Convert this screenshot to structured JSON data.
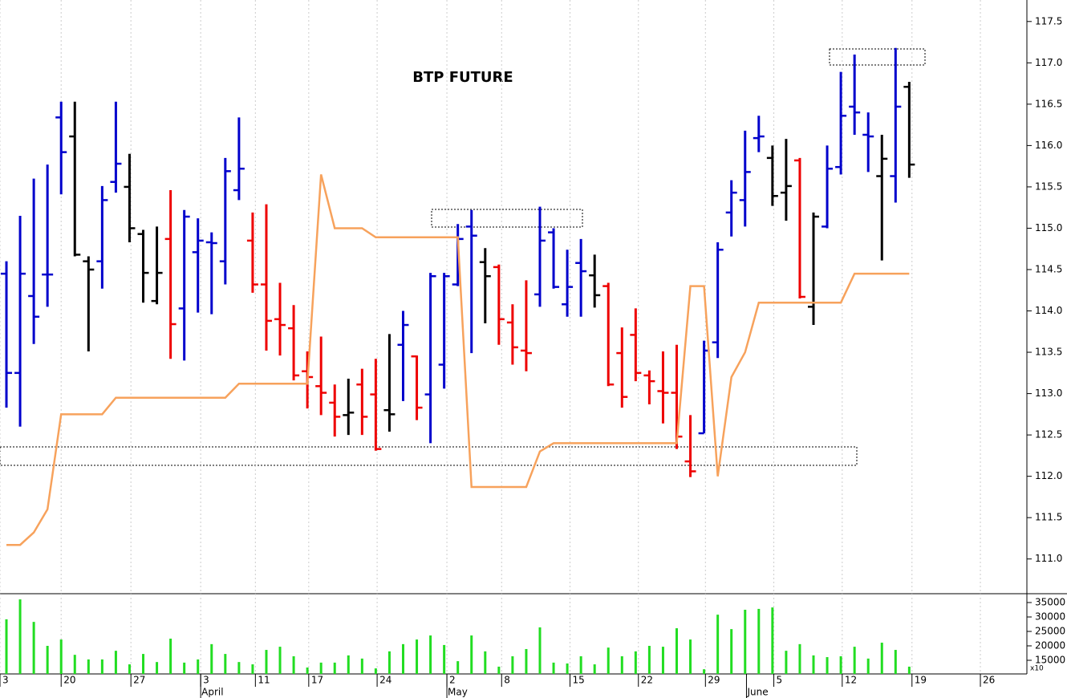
{
  "chart_data": [
    {
      "type": "ohlc",
      "title": "BTP FUTURE",
      "xlim": [
        -0.47,
        74.6
      ],
      "ylim": [
        110.58,
        117.76
      ],
      "yticks": [
        {
          "value": 111,
          "label": "111.0"
        },
        {
          "value": 111.5,
          "label": "111.5"
        },
        {
          "value": 112,
          "label": "112.0"
        },
        {
          "value": 112.5,
          "label": "112.5"
        },
        {
          "value": 113,
          "label": "113.0"
        },
        {
          "value": 113.5,
          "label": "113.5"
        },
        {
          "value": 114,
          "label": "114.0"
        },
        {
          "value": 114.5,
          "label": "114.5"
        },
        {
          "value": 115,
          "label": "115.0"
        },
        {
          "value": 115.5,
          "label": "115.5"
        },
        {
          "value": 116,
          "label": "116.0"
        },
        {
          "value": 116.5,
          "label": "116.5"
        },
        {
          "value": 117,
          "label": "117.0"
        },
        {
          "value": 117.5,
          "label": "117.5"
        }
      ],
      "xticks": [
        {
          "value": -0.47,
          "label": "3"
        },
        {
          "value": 4,
          "label": "20"
        },
        {
          "value": 9.1,
          "label": "27"
        },
        {
          "value": 14.2,
          "label": "3"
        },
        {
          "value": 18.2,
          "label": "11"
        },
        {
          "value": 22.1,
          "label": "17"
        },
        {
          "value": 27.1,
          "label": "24"
        },
        {
          "value": 32.2,
          "label": "2"
        },
        {
          "value": 36.2,
          "label": "8"
        },
        {
          "value": 41.2,
          "label": "15"
        },
        {
          "value": 46.2,
          "label": "22"
        },
        {
          "value": 51.1,
          "label": "29"
        },
        {
          "value": 56.1,
          "label": "5"
        },
        {
          "value": 61.1,
          "label": "12"
        },
        {
          "value": 66.2,
          "label": "19"
        },
        {
          "value": 71.2,
          "label": "26"
        }
      ],
      "month_ticks": [
        {
          "value": 14.2,
          "label": "April"
        },
        {
          "value": 32.2,
          "label": "May"
        },
        {
          "value": 54.1,
          "label": "June"
        }
      ],
      "grid": true,
      "ohlc": {
        "open": [
          114.45,
          113.25,
          114.18,
          114.44,
          116.34,
          116.11,
          114.6,
          114.6,
          115.56,
          115.5,
          114.93,
          114.12,
          114.87,
          114.03,
          114.71,
          114.83,
          114.6,
          115.46,
          114.85,
          114.32,
          113.9,
          113.79,
          113.27,
          113.09,
          112.89,
          112.74,
          113.11,
          112.99,
          112.8,
          113.59,
          113.45,
          112.99,
          113.35,
          114.32,
          115.02,
          114.59,
          114.53,
          113.86,
          113.52,
          114.2,
          114.95,
          114.08,
          114.58,
          114.43,
          114.3,
          113.49,
          113.71,
          113.22,
          113.03,
          113.01,
          112.18,
          112.52,
          113.62,
          115.19,
          115.34,
          116.09,
          115.85,
          115.43,
          115.82,
          114.05,
          115.02,
          115.74,
          116.47,
          116.13,
          115.63,
          115.63,
          116.71
        ],
        "high": [
          114.6,
          115.15,
          115.6,
          115.77,
          116.53,
          116.53,
          114.66,
          115.51,
          116.53,
          115.9,
          114.98,
          115.02,
          115.46,
          115.22,
          115.12,
          114.95,
          115.85,
          116.34,
          115.19,
          115.29,
          114.34,
          114.07,
          113.51,
          113.69,
          113.11,
          113.18,
          113.3,
          113.42,
          113.72,
          114.0,
          113.46,
          114.46,
          114.46,
          115.05,
          115.22,
          114.76,
          114.56,
          114.08,
          114.37,
          115.26,
          115.0,
          114.74,
          114.87,
          114.68,
          114.34,
          113.8,
          114.03,
          113.28,
          113.51,
          113.59,
          112.74,
          113.64,
          114.83,
          115.58,
          116.18,
          116.36,
          116.0,
          116.08,
          115.85,
          115.19,
          116.0,
          116.89,
          117.1,
          116.4,
          116.13,
          117.18,
          116.77
        ],
        "low": [
          112.83,
          112.6,
          113.6,
          114.05,
          115.41,
          114.66,
          113.51,
          114.27,
          115.43,
          114.83,
          114.1,
          114.08,
          113.42,
          113.4,
          113.98,
          113.96,
          114.32,
          115.34,
          114.22,
          113.52,
          113.46,
          113.16,
          112.82,
          112.74,
          112.48,
          112.5,
          112.5,
          112.31,
          112.54,
          112.91,
          112.68,
          112.4,
          113.06,
          114.3,
          113.49,
          113.85,
          113.59,
          113.35,
          113.27,
          114.05,
          114.27,
          113.93,
          113.93,
          114.04,
          113.09,
          112.83,
          113.15,
          112.87,
          112.64,
          112.33,
          111.99,
          112.52,
          113.43,
          114.9,
          115.02,
          115.92,
          115.27,
          115.09,
          114.15,
          113.83,
          115.0,
          115.65,
          116.13,
          115.68,
          114.61,
          115.31,
          115.61
        ],
        "close": [
          113.25,
          114.45,
          113.93,
          114.44,
          115.92,
          114.68,
          114.5,
          115.34,
          115.78,
          115.0,
          114.46,
          114.46,
          113.84,
          115.14,
          114.85,
          114.82,
          115.69,
          115.72,
          114.32,
          113.88,
          113.83,
          113.22,
          113.2,
          113.01,
          112.72,
          112.77,
          112.72,
          112.33,
          112.75,
          113.83,
          112.83,
          114.42,
          114.42,
          114.87,
          114.91,
          114.42,
          113.9,
          113.56,
          113.49,
          114.85,
          114.29,
          114.29,
          114.48,
          114.19,
          113.11,
          112.96,
          113.25,
          113.15,
          113.01,
          112.48,
          112.06,
          113.52,
          114.74,
          115.43,
          115.68,
          116.11,
          115.39,
          115.51,
          114.17,
          115.14,
          115.72,
          116.36,
          116.4,
          116.11,
          115.84,
          116.47,
          115.77
        ],
        "colors": [
          "#0000cc",
          "#0000cc",
          "#0000cc",
          "#0000cc",
          "#0000cc",
          "#000000",
          "#000000",
          "#0000cc",
          "#0000cc",
          "#000000",
          "#000000",
          "#000000",
          "#ee0000",
          "#0000cc",
          "#0000cc",
          "#0000cc",
          "#0000cc",
          "#0000cc",
          "#ee0000",
          "#ee0000",
          "#ee0000",
          "#ee0000",
          "#ee0000",
          "#ee0000",
          "#ee0000",
          "#000000",
          "#ee0000",
          "#ee0000",
          "#000000",
          "#0000cc",
          "#ee0000",
          "#0000cc",
          "#0000cc",
          "#0000cc",
          "#0000cc",
          "#000000",
          "#ee0000",
          "#ee0000",
          "#ee0000",
          "#0000cc",
          "#0000cc",
          "#0000cc",
          "#0000cc",
          "#000000",
          "#ee0000",
          "#ee0000",
          "#ee0000",
          "#ee0000",
          "#ee0000",
          "#ee0000",
          "#ee0000",
          "#0000cc",
          "#0000cc",
          "#0000cc",
          "#0000cc",
          "#0000cc",
          "#000000",
          "#000000",
          "#ee0000",
          "#000000",
          "#0000cc",
          "#0000cc",
          "#0000cc",
          "#0000cc",
          "#000000",
          "#0000cc",
          "#000000"
        ]
      },
      "line": {
        "color": "#f7a25c",
        "values": [
          111.17,
          111.17,
          111.32,
          111.6,
          112.75,
          112.75,
          112.75,
          112.75,
          112.95,
          112.95,
          112.95,
          112.95,
          112.95,
          112.95,
          112.95,
          112.95,
          112.95,
          113.12,
          113.12,
          113.12,
          113.12,
          113.12,
          113.12,
          115.65,
          115.0,
          115.0,
          115.0,
          114.89,
          114.89,
          114.89,
          114.89,
          114.89,
          114.89,
          114.89,
          111.87,
          111.87,
          111.87,
          111.87,
          111.87,
          112.3,
          112.4,
          112.4,
          112.4,
          112.4,
          112.4,
          112.4,
          112.4,
          112.4,
          112.4,
          112.4,
          114.3,
          114.3,
          112.0,
          113.2,
          113.5,
          114.1,
          114.1,
          114.1,
          114.1,
          114.1,
          114.1,
          114.1,
          114.45,
          114.45,
          114.45,
          114.45,
          114.45
        ]
      }
    },
    {
      "type": "bar",
      "color": "#22dd22",
      "ylim": [
        10280,
        38060
      ],
      "yticks": [
        15000,
        20000,
        25000,
        30000,
        35000
      ],
      "note": "x10",
      "values": [
        29200,
        36100,
        28300,
        20000,
        22200,
        16900,
        15300,
        15300,
        18300,
        13600,
        17200,
        14400,
        22500,
        14200,
        15300,
        20600,
        17200,
        14400,
        13600,
        18600,
        19700,
        16400,
        12500,
        14200,
        14200,
        16700,
        15600,
        12200,
        18100,
        20600,
        22200,
        23600,
        20300,
        14700,
        23600,
        18100,
        12800,
        16400,
        18900,
        26400,
        14200,
        13900,
        16400,
        13600,
        19400,
        16400,
        18100,
        20000,
        19700,
        26100,
        22200,
        11900,
        30800,
        25800,
        32500,
        32800,
        33300,
        18300,
        20600,
        16700,
        16100,
        16400,
        19700,
        15600,
        21100,
        18600,
        12800
      ]
    }
  ]
}
